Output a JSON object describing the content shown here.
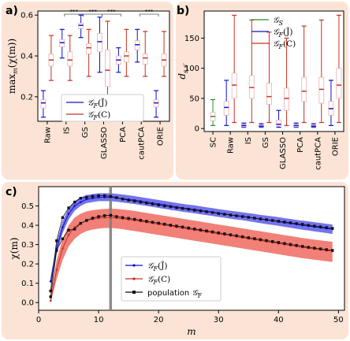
{
  "colors": {
    "blue": "#1010c8",
    "red": "#c83020",
    "green": "#2e8b2e",
    "black": "#111111",
    "grey": "#808080",
    "panel": "#fbe4d6"
  },
  "chart_data": [
    {
      "type": "box",
      "panel_label": "a)",
      "ylabel": "max",
      "ylabel_sub": "m",
      "ylabel_tail": "(χ(m))",
      "ylim": [
        0.08,
        0.62
      ],
      "yticks": [
        0.2,
        0.4,
        0.6
      ],
      "ytick_labels": [
        "0.2",
        "0.4",
        "0.6"
      ],
      "categories": [
        "Raw",
        "IS",
        "GS",
        "GLASSO",
        "PCA",
        "cautPCA",
        "ORIE"
      ],
      "significance": [
        {
          "from": 1,
          "to": 2,
          "label": "***"
        },
        {
          "from": 2,
          "to": 3,
          "label": "***"
        },
        {
          "from": 3,
          "to": 4,
          "label": "***"
        },
        {
          "from": 5,
          "to": 6,
          "label": "***"
        }
      ],
      "legend": [
        "𝒢F(J̃)",
        "𝒢F(C)"
      ],
      "series": [
        {
          "name": "𝒢F(J̃)",
          "color": "blue",
          "boxes": [
            {
              "wl": 0.1,
              "q1": 0.145,
              "med": 0.17,
              "q3": 0.185,
              "wh": 0.23
            },
            {
              "wl": 0.39,
              "q1": 0.445,
              "med": 0.465,
              "q3": 0.48,
              "wh": 0.53
            },
            {
              "wl": 0.49,
              "q1": 0.535,
              "med": 0.55,
              "q3": 0.56,
              "wh": 0.6
            },
            {
              "wl": 0.32,
              "q1": 0.42,
              "med": 0.47,
              "q3": 0.51,
              "wh": 0.59
            },
            {
              "wl": 0.32,
              "q1": 0.36,
              "med": 0.38,
              "q3": 0.4,
              "wh": 0.44
            },
            {
              "wl": 0.37,
              "q1": 0.43,
              "med": 0.455,
              "q3": 0.475,
              "wh": 0.53
            },
            {
              "wl": 0.1,
              "q1": 0.15,
              "med": 0.17,
              "q3": 0.185,
              "wh": 0.23
            }
          ]
        },
        {
          "name": "𝒢F(C)",
          "color": "red",
          "boxes": [
            {
              "wl": 0.28,
              "q1": 0.35,
              "med": 0.38,
              "q3": 0.41,
              "wh": 0.5
            },
            {
              "wl": 0.28,
              "q1": 0.35,
              "med": 0.38,
              "q3": 0.42,
              "wh": 0.5
            },
            {
              "wl": 0.3,
              "q1": 0.41,
              "med": 0.44,
              "q3": 0.46,
              "wh": 0.53
            },
            {
              "wl": 0.1,
              "q1": 0.25,
              "med": 0.33,
              "q3": 0.43,
              "wh": 0.57
            },
            {
              "wl": 0.3,
              "q1": 0.37,
              "med": 0.4,
              "q3": 0.42,
              "wh": 0.53
            },
            {
              "wl": 0.3,
              "q1": 0.36,
              "med": 0.39,
              "q3": 0.41,
              "wh": 0.52
            },
            {
              "wl": 0.3,
              "q1": 0.35,
              "med": 0.38,
              "q3": 0.41,
              "wh": 0.52
            }
          ]
        }
      ]
    },
    {
      "type": "box",
      "panel_label": "b)",
      "ylabel": "d",
      "ylabel_sub": "s,s′",
      "ylim": [
        -5,
        195
      ],
      "yticks": [
        0,
        50,
        100,
        150
      ],
      "ytick_labels": [
        "0",
        "50",
        "100",
        "150"
      ],
      "categories": [
        "SC",
        "Raw",
        "IS",
        "GS",
        "GLASSO",
        "PCA",
        "cautPCA",
        "ORIE"
      ],
      "legend": [
        "𝒢S",
        "𝒢F(J̃)",
        "𝒢F(C)"
      ],
      "series": [
        {
          "name": "𝒢S",
          "color": "green",
          "slots": [
            0
          ],
          "boxes": [
            {
              "wl": 5,
              "q1": 13,
              "med": 20,
              "q3": 27,
              "wh": 48
            }
          ]
        },
        {
          "name": "𝒢F(J̃)",
          "color": "blue",
          "slots": [
            1,
            2,
            3,
            4,
            5,
            6,
            7
          ],
          "boxes": [
            {
              "wl": 5,
              "q1": 22,
              "med": 35,
              "q3": 45,
              "wh": 80
            },
            {
              "wl": 2,
              "q1": 3,
              "med": 5,
              "q3": 7,
              "wh": 9
            },
            {
              "wl": 2,
              "q1": 3,
              "med": 4,
              "q3": 6,
              "wh": 8
            },
            {
              "wl": 2,
              "q1": 4,
              "med": 7,
              "q3": 14,
              "wh": 30
            },
            {
              "wl": 2,
              "q1": 3,
              "med": 5,
              "q3": 7,
              "wh": 9
            },
            {
              "wl": 2,
              "q1": 3,
              "med": 4,
              "q3": 6,
              "wh": 8
            },
            {
              "wl": 5,
              "q1": 22,
              "med": 33,
              "q3": 45,
              "wh": 80
            }
          ]
        },
        {
          "name": "𝒢F(C)",
          "color": "red",
          "slots": [
            1,
            2,
            3,
            4,
            5,
            6,
            7
          ],
          "boxes": [
            {
              "wl": 10,
              "q1": 50,
              "med": 72,
              "q3": 92,
              "wh": 188
            },
            {
              "wl": 10,
              "q1": 50,
              "med": 68,
              "q3": 88,
              "wh": 180
            },
            {
              "wl": 10,
              "q1": 40,
              "med": 53,
              "q3": 75,
              "wh": 160
            },
            {
              "wl": 5,
              "q1": 30,
              "med": 50,
              "q3": 67,
              "wh": 150
            },
            {
              "wl": 10,
              "q1": 45,
              "med": 62,
              "q3": 85,
              "wh": 170
            },
            {
              "wl": 10,
              "q1": 42,
              "med": 65,
              "q3": 85,
              "wh": 180
            },
            {
              "wl": 10,
              "q1": 50,
              "med": 72,
              "q3": 100,
              "wh": 188
            }
          ]
        }
      ]
    },
    {
      "type": "line",
      "panel_label": "c)",
      "xlabel": "m",
      "ylabel": "χ(m)",
      "xlim": [
        0,
        51
      ],
      "ylim": [
        -0.04,
        0.6
      ],
      "xticks": [
        0,
        10,
        20,
        30,
        40,
        50
      ],
      "xtick_labels": [
        "0",
        "10",
        "20",
        "30",
        "40",
        "50"
      ],
      "yticks": [
        0.0,
        0.1,
        0.2,
        0.3,
        0.4,
        0.5
      ],
      "ytick_labels": [
        "0.0",
        "0.1",
        "0.2",
        "0.3",
        "0.4",
        "0.5"
      ],
      "vline_x": 12,
      "x": [
        2,
        3,
        4,
        5,
        6,
        7,
        8,
        9,
        10,
        11,
        12,
        13,
        14,
        15,
        16,
        17,
        18,
        19,
        20,
        21,
        22,
        23,
        24,
        25,
        26,
        27,
        28,
        29,
        30,
        31,
        32,
        33,
        34,
        35,
        36,
        37,
        38,
        39,
        40,
        41,
        42,
        43,
        44,
        45,
        46,
        47,
        48,
        49
      ],
      "series": [
        {
          "name": "𝒢F(J̃)",
          "color": "blue",
          "marker": "dot",
          "values": [
            0.11,
            0.28,
            0.39,
            0.46,
            0.5,
            0.52,
            0.535,
            0.54,
            0.545,
            0.545,
            0.545,
            0.542,
            0.538,
            0.534,
            0.53,
            0.525,
            0.52,
            0.515,
            0.51,
            0.505,
            0.5,
            0.495,
            0.49,
            0.486,
            0.482,
            0.477,
            0.472,
            0.468,
            0.463,
            0.459,
            0.454,
            0.45,
            0.446,
            0.442,
            0.437,
            0.432,
            0.428,
            0.424,
            0.419,
            0.414,
            0.41,
            0.405,
            0.4,
            0.396,
            0.392,
            0.388,
            0.384,
            0.38
          ],
          "band_low": [
            0.09,
            0.25,
            0.36,
            0.43,
            0.475,
            0.5,
            0.515,
            0.52,
            0.525,
            0.525,
            0.525,
            0.522,
            0.518,
            0.514,
            0.51,
            0.505,
            0.5,
            0.495,
            0.49,
            0.485,
            0.48,
            0.475,
            0.47,
            0.466,
            0.462,
            0.457,
            0.452,
            0.448,
            0.443,
            0.439,
            0.434,
            0.43,
            0.426,
            0.421,
            0.416,
            0.411,
            0.406,
            0.402,
            0.397,
            0.392,
            0.387,
            0.382,
            0.377,
            0.373,
            0.368,
            0.364,
            0.36,
            0.355
          ],
          "band_high": [
            0.13,
            0.31,
            0.42,
            0.49,
            0.525,
            0.545,
            0.557,
            0.562,
            0.566,
            0.566,
            0.566,
            0.563,
            0.559,
            0.555,
            0.551,
            0.546,
            0.541,
            0.536,
            0.531,
            0.526,
            0.521,
            0.516,
            0.511,
            0.507,
            0.503,
            0.498,
            0.493,
            0.489,
            0.484,
            0.48,
            0.475,
            0.471,
            0.467,
            0.463,
            0.459,
            0.454,
            0.45,
            0.446,
            0.442,
            0.437,
            0.433,
            0.428,
            0.424,
            0.42,
            0.416,
            0.412,
            0.408,
            0.404
          ]
        },
        {
          "name": "𝒢F(C)",
          "color": "red",
          "marker": "dot",
          "values": [
            0.01,
            0.17,
            0.28,
            0.35,
            0.39,
            0.41,
            0.425,
            0.432,
            0.437,
            0.44,
            0.44,
            0.438,
            0.434,
            0.43,
            0.426,
            0.421,
            0.416,
            0.411,
            0.406,
            0.401,
            0.396,
            0.391,
            0.386,
            0.381,
            0.376,
            0.371,
            0.366,
            0.361,
            0.356,
            0.351,
            0.346,
            0.341,
            0.336,
            0.331,
            0.326,
            0.321,
            0.316,
            0.311,
            0.306,
            0.301,
            0.296,
            0.291,
            0.286,
            0.282,
            0.278,
            0.274,
            0.27,
            0.266
          ],
          "band_low": [
            0.0,
            0.12,
            0.22,
            0.29,
            0.33,
            0.355,
            0.37,
            0.378,
            0.383,
            0.386,
            0.386,
            0.384,
            0.38,
            0.375,
            0.37,
            0.365,
            0.36,
            0.355,
            0.35,
            0.345,
            0.34,
            0.335,
            0.33,
            0.325,
            0.32,
            0.315,
            0.31,
            0.305,
            0.3,
            0.295,
            0.29,
            0.285,
            0.28,
            0.275,
            0.27,
            0.265,
            0.26,
            0.255,
            0.25,
            0.245,
            0.24,
            0.235,
            0.23,
            0.226,
            0.222,
            0.218,
            0.214,
            0.21
          ],
          "band_high": [
            0.03,
            0.22,
            0.33,
            0.4,
            0.44,
            0.46,
            0.472,
            0.478,
            0.482,
            0.485,
            0.486,
            0.485,
            0.482,
            0.478,
            0.474,
            0.469,
            0.464,
            0.459,
            0.454,
            0.449,
            0.444,
            0.439,
            0.434,
            0.429,
            0.424,
            0.419,
            0.414,
            0.409,
            0.404,
            0.399,
            0.394,
            0.389,
            0.384,
            0.379,
            0.374,
            0.369,
            0.364,
            0.359,
            0.354,
            0.349,
            0.344,
            0.339,
            0.334,
            0.33,
            0.326,
            0.322,
            0.318,
            0.314
          ]
        },
        {
          "name": "population 𝒢F",
          "color": "black",
          "marker": "square",
          "values": [
            0.06,
            0.32,
            0.44,
            0.49,
            0.52,
            0.54,
            0.545,
            0.55,
            0.553,
            0.553,
            0.55,
            0.543,
            0.536,
            0.53,
            0.525,
            0.52,
            0.515,
            0.51,
            0.505,
            0.5,
            0.496,
            0.491,
            0.487,
            0.483,
            0.478,
            0.474,
            0.47,
            0.466,
            0.461,
            0.457,
            0.453,
            0.449,
            0.445,
            0.441,
            0.437,
            0.433,
            0.429,
            0.425,
            0.421,
            0.417,
            0.413,
            0.409,
            0.405,
            0.4,
            0.396,
            0.392,
            0.388,
            0.384
          ],
          "values_red": [
            0.03,
            0.27,
            0.33,
            0.375,
            0.38,
            0.41,
            0.425,
            0.437,
            0.445,
            0.45,
            0.452,
            0.445,
            0.44,
            0.436,
            0.431,
            0.426,
            0.421,
            0.416,
            0.411,
            0.406,
            0.401,
            0.396,
            0.391,
            0.386,
            0.381,
            0.376,
            0.371,
            0.366,
            0.361,
            0.356,
            0.351,
            0.346,
            0.341,
            0.336,
            0.331,
            0.326,
            0.321,
            0.316,
            0.311,
            0.306,
            0.301,
            0.296,
            0.291,
            0.286,
            0.282,
            0.278,
            0.274,
            0.27
          ]
        }
      ],
      "legend": [
        "𝒢F(J̃)",
        "𝒢F(C)",
        "population 𝒢F"
      ]
    }
  ]
}
